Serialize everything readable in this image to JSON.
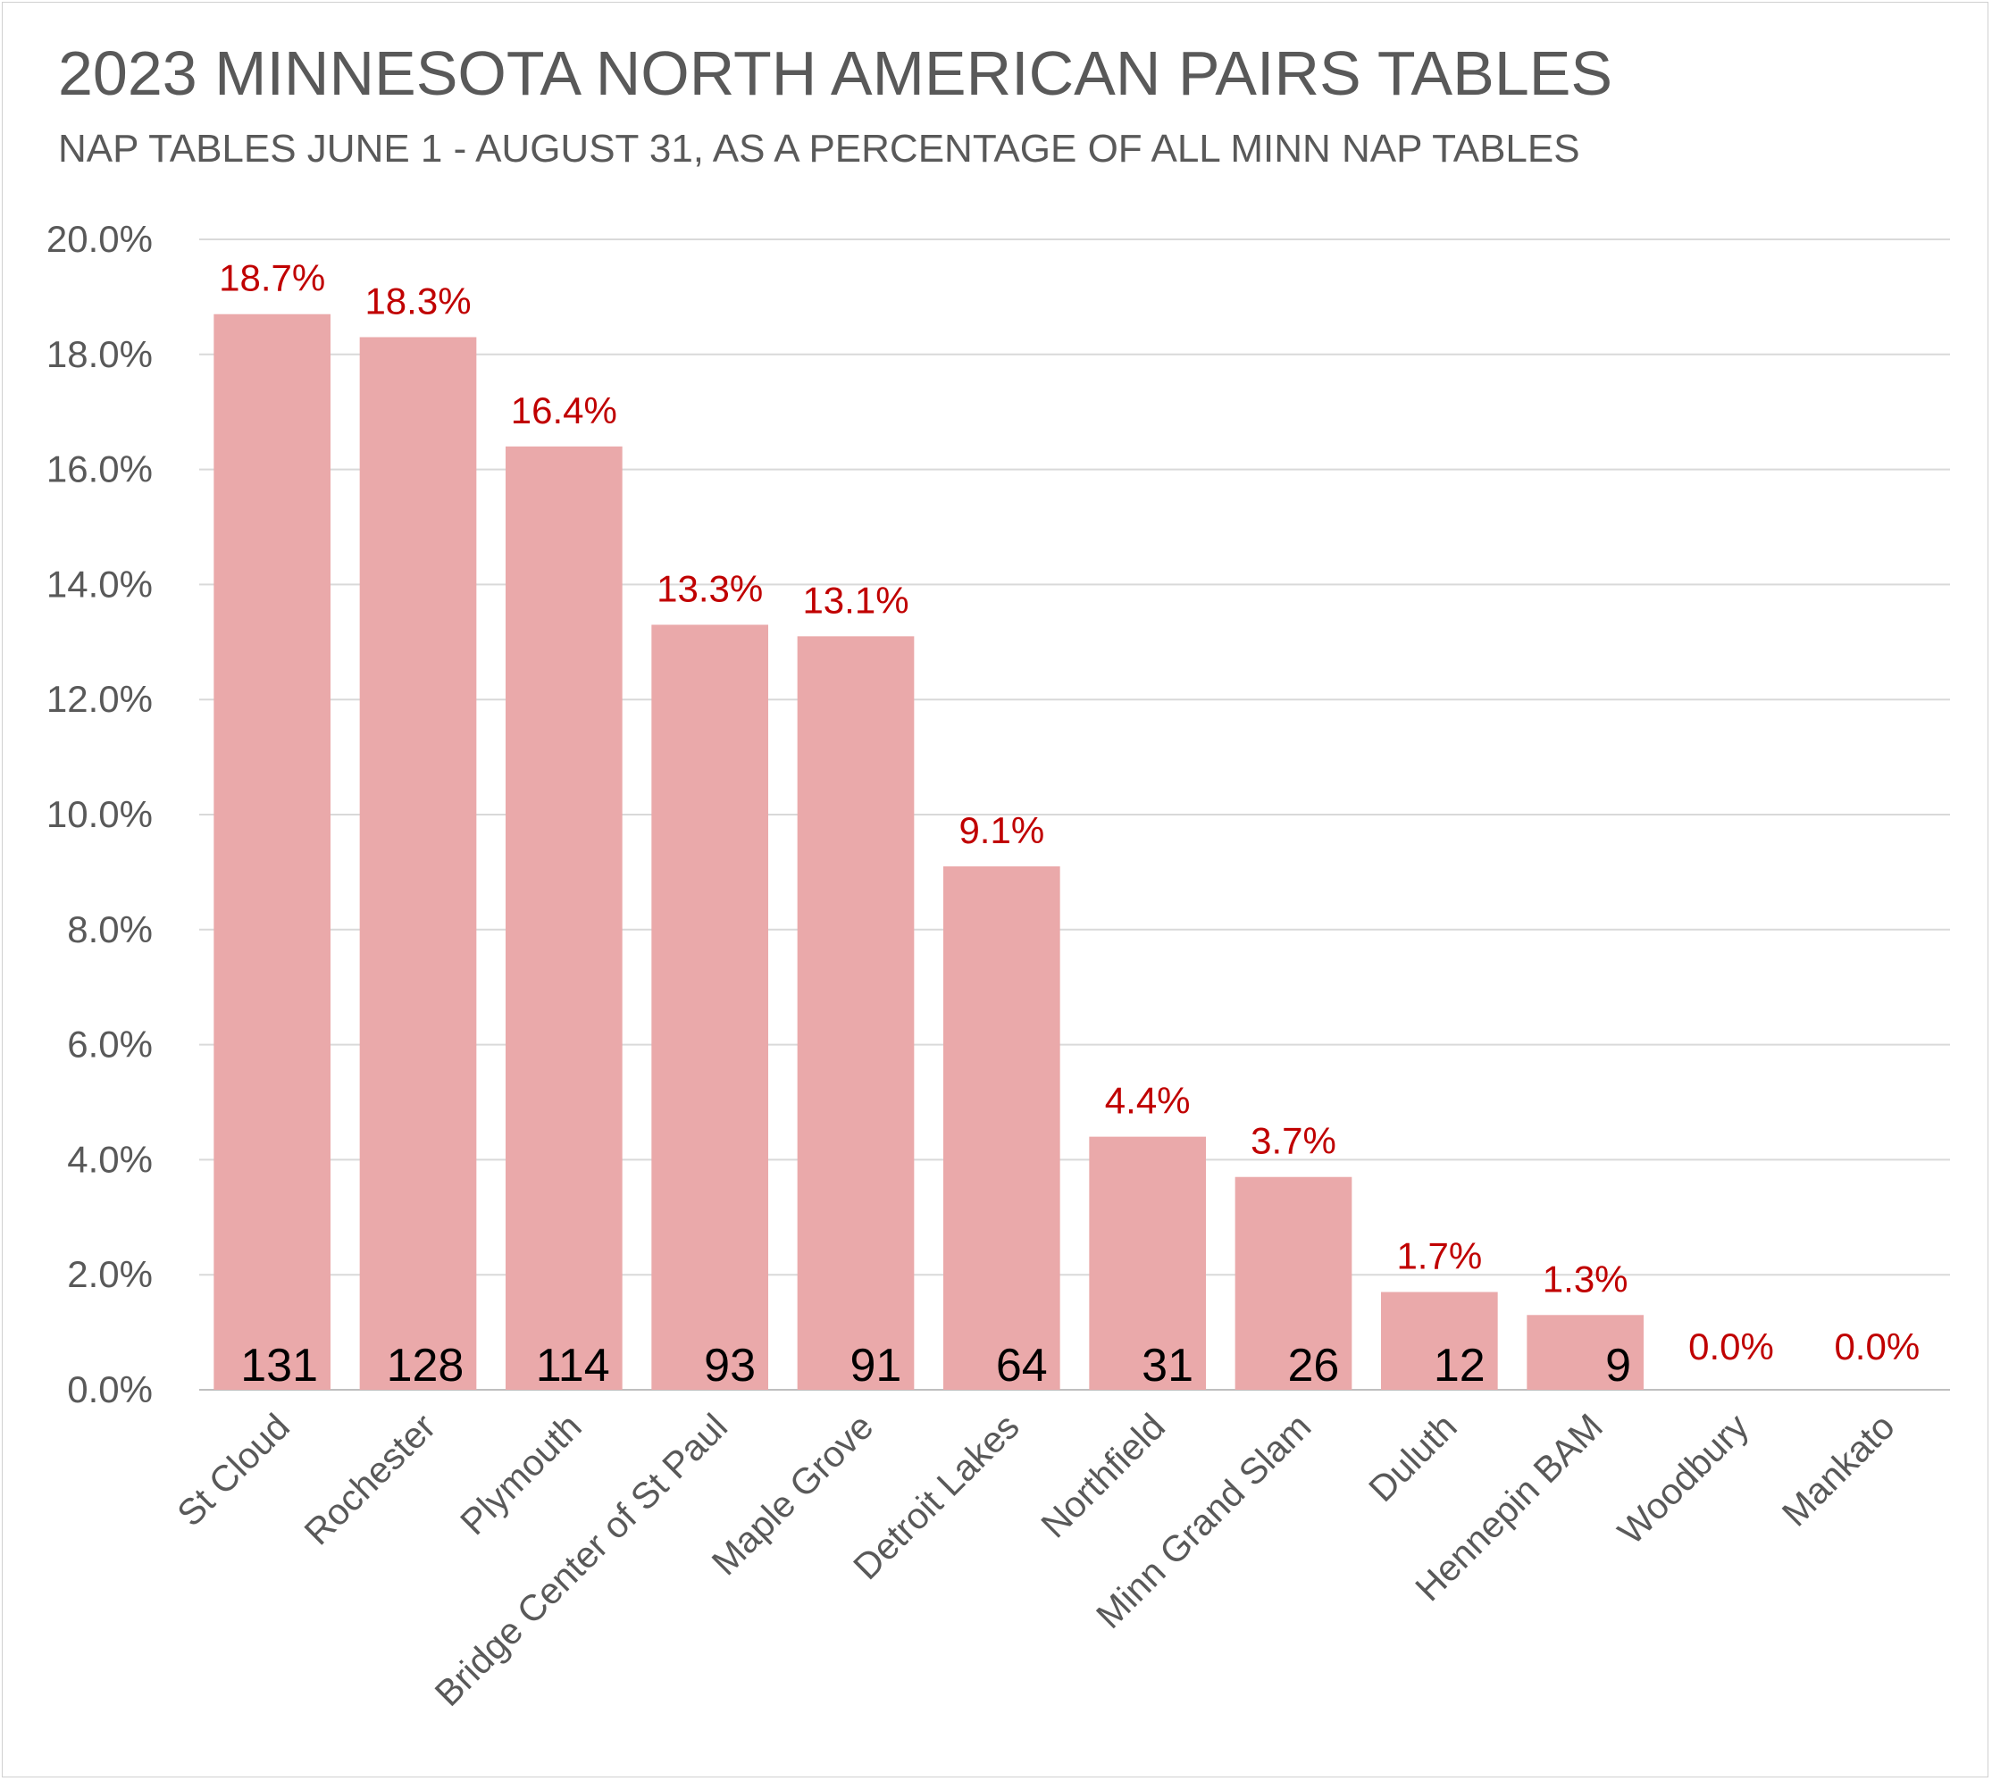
{
  "chart_data": {
    "type": "bar",
    "title": "2023 MINNESOTA NORTH AMERICAN PAIRS TABLES",
    "subtitle": "NAP TABLES JUNE 1 - AUGUST 31, AS A PERCENTAGE OF ALL MINN NAP TABLES",
    "xlabel": "",
    "ylabel": "",
    "ylim": [
      0,
      20
    ],
    "y_tick_step": 2,
    "y_tick_format": "percent_1dp",
    "grid": true,
    "legend": "none",
    "categories": [
      "St Cloud",
      "Rochester",
      "Plymouth",
      "Bridge Center of St Paul",
      "Maple Grove",
      "Detroit Lakes",
      "Northfield",
      "Minn Grand Slam",
      "Duluth",
      "Hennepin BAM",
      "Woodbury",
      "Mankato"
    ],
    "values": [
      18.7,
      18.3,
      16.4,
      13.3,
      13.1,
      9.1,
      4.4,
      3.7,
      1.7,
      1.3,
      0.0,
      0.0
    ],
    "value_labels": [
      "18.7%",
      "18.3%",
      "16.4%",
      "13.3%",
      "13.1%",
      "9.1%",
      "4.4%",
      "3.7%",
      "1.7%",
      "1.3%",
      "0.0%",
      "0.0%"
    ],
    "table_counts": [
      "131",
      "128",
      "114",
      "93",
      "91",
      "64",
      "31",
      "26",
      "12",
      "9",
      "",
      ""
    ],
    "colors": {
      "bar": "#eaa9aa",
      "value_label": "#c00000",
      "count_label": "#000000",
      "axis_text": "#595959",
      "gridline": "#d9d9d9"
    }
  }
}
